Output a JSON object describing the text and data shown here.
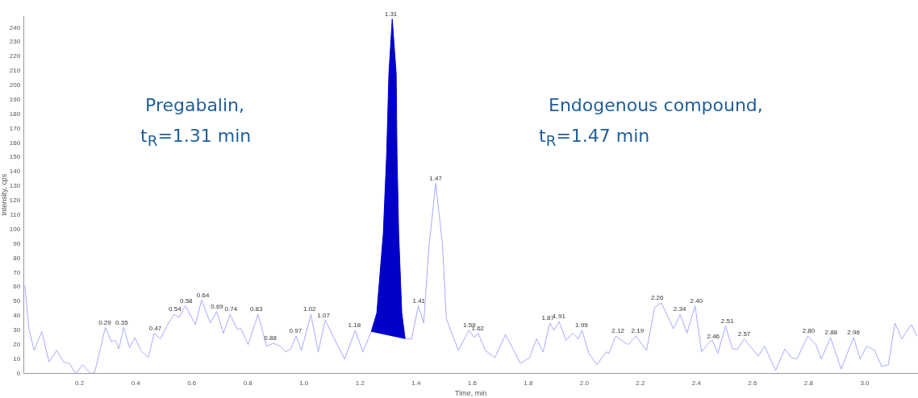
{
  "chart_data": {
    "type": "line",
    "xlabel": "Time, min",
    "ylabel": "Intensity, cps",
    "xlim": [
      0,
      3.19
    ],
    "xticks": [
      0.2,
      0.4,
      0.6,
      0.8,
      {
        "value": 1.0,
        "label": "1.0"
      },
      1.2,
      1.4,
      1.6,
      1.8,
      {
        "value": 2.0,
        "label": "2.0"
      },
      2.2,
      2.4,
      2.6,
      2.8,
      {
        "value": 3.0,
        "label": "3.0"
      }
    ],
    "ylim": [
      0,
      248
    ],
    "yticks": [
      0,
      10,
      20,
      30,
      40,
      50,
      60,
      70,
      80,
      90,
      100,
      110,
      120,
      130,
      140,
      150,
      160,
      170,
      180,
      190,
      200,
      210,
      220,
      230,
      240
    ],
    "grid": false,
    "legend": false,
    "marker": "none",
    "series": [
      {
        "type": "line",
        "color": "#a8aaff",
        "x": [
          0.005,
          0.019,
          0.038,
          0.065,
          0.091,
          0.118,
          0.143,
          0.163,
          0.187,
          0.211,
          0.239,
          0.254,
          0.292,
          0.313,
          0.328,
          0.34,
          0.357,
          0.378,
          0.397,
          0.418,
          0.445,
          0.466,
          0.488,
          0.512,
          0.536,
          0.555,
          0.577,
          0.613,
          0.635,
          0.666,
          0.689,
          0.713,
          0.737,
          0.761,
          0.776,
          0.801,
          0.836,
          0.867,
          0.891,
          0.915,
          0.934,
          0.953,
          0.972,
          0.991,
          1.025,
          1.051,
          1.076,
          1.106,
          1.145,
          1.183,
          1.21,
          1.24,
          1.3,
          1.361,
          1.384,
          1.408,
          1.427,
          1.446,
          1.47,
          1.494,
          1.508,
          1.551,
          1.588,
          1.608,
          1.621,
          1.647,
          1.681,
          1.719,
          1.772,
          1.805,
          1.829,
          1.853,
          1.877,
          1.892,
          1.91,
          1.935,
          1.959,
          1.978,
          1.992,
          2.016,
          2.045,
          2.078,
          2.088,
          2.112,
          2.155,
          2.184,
          2.222,
          2.251,
          2.275,
          2.318,
          2.342,
          2.366,
          2.395,
          2.418,
          2.447,
          2.457,
          2.476,
          2.504,
          2.528,
          2.547,
          2.57,
          2.62,
          2.643,
          2.682,
          2.715,
          2.739,
          2.758,
          2.797,
          2.826,
          2.845,
          2.878,
          2.916,
          2.96,
          2.984,
          3.007,
          3.036,
          3.06,
          3.084,
          3.108,
          3.132,
          3.166,
          3.186
        ],
        "values": [
          61,
          31,
          16,
          29,
          8,
          16,
          8,
          7,
          0,
          6,
          0,
          1,
          32,
          22,
          23,
          17,
          32,
          18,
          25,
          16,
          11,
          28,
          24,
          33,
          41,
          39,
          47,
          34,
          51,
          35,
          43,
          28,
          41,
          31,
          31,
          20,
          41,
          19,
          21,
          19,
          15,
          17,
          26,
          16,
          41,
          15,
          37,
          25,
          10,
          30,
          15,
          29,
          null,
          24,
          24,
          47,
          35,
          88,
          132,
          90,
          38,
          16,
          30,
          25,
          28,
          16,
          11,
          27,
          7,
          11,
          24,
          15,
          35,
          30,
          36,
          23,
          28,
          24,
          30,
          14,
          6,
          15,
          14,
          26,
          20,
          26,
          16,
          46,
          49,
          31,
          41,
          28,
          47,
          15,
          22,
          23,
          14,
          33,
          17,
          17,
          24,
          12,
          19,
          2,
          17,
          11,
          10,
          26,
          20,
          10,
          25,
          3,
          25,
          10,
          19,
          16,
          5,
          6,
          35,
          24,
          34,
          26
        ]
      },
      {
        "type": "area",
        "color": "#0000c8",
        "x": [
          1.24,
          1.26,
          1.283,
          1.295,
          1.303,
          1.315,
          1.329,
          1.332,
          1.338,
          1.349,
          1.361
        ],
        "values": [
          29,
          42,
          97,
          152,
          208,
          246,
          208,
          152,
          97,
          42,
          24
        ]
      }
    ],
    "annotations": [
      "Pregabalin,",
      "t$_{R}$=1.31 min",
      "Endogenous compound,",
      "t$_{R}$=1.47 min",
      {
        "text": "0.29",
        "x": 0.29,
        "y": 32
      },
      {
        "text": "0.35",
        "x": 0.35,
        "y": 32
      },
      {
        "text": "0.47",
        "x": 0.47,
        "y": 28
      },
      {
        "text": "0.54",
        "x": 0.54,
        "y": 41
      },
      {
        "text": "0.58",
        "x": 0.58,
        "y": 47
      },
      {
        "text": "0.64",
        "x": 0.64,
        "y": 51
      },
      {
        "text": "0.69",
        "x": 0.69,
        "y": 43
      },
      {
        "text": "0.74",
        "x": 0.74,
        "y": 41
      },
      {
        "text": "0.83",
        "x": 0.83,
        "y": 41
      },
      {
        "text": "0.88",
        "x": 0.88,
        "y": 21
      },
      {
        "text": "0.97",
        "x": 0.97,
        "y": 26
      },
      {
        "text": "1.02",
        "x": 1.02,
        "y": 41
      },
      {
        "text": "1.07",
        "x": 1.07,
        "y": 37
      },
      {
        "text": "1.18",
        "x": 1.18,
        "y": 30
      },
      {
        "text": "1.31",
        "x": 1.31,
        "y": 246
      },
      {
        "text": "1.41",
        "x": 1.41,
        "y": 47
      },
      {
        "text": "1.47",
        "x": 1.47,
        "y": 132
      },
      {
        "text": "1.59",
        "x": 1.59,
        "y": 30
      },
      {
        "text": "1.62",
        "x": 1.62,
        "y": 28
      },
      {
        "text": "1.87",
        "x": 1.87,
        "y": 35
      },
      {
        "text": "1.91",
        "x": 1.91,
        "y": 36
      },
      {
        "text": "1.99",
        "x": 1.99,
        "y": 30
      },
      {
        "text": "2.12",
        "x": 2.12,
        "y": 26
      },
      {
        "text": "2.19",
        "x": 2.19,
        "y": 26
      },
      {
        "text": "2.26",
        "x": 2.26,
        "y": 49
      },
      {
        "text": "2.34",
        "x": 2.34,
        "y": 41
      },
      {
        "text": "2.40",
        "x": 2.4,
        "y": 47
      },
      {
        "text": "2.46",
        "x": 2.46,
        "y": 22
      },
      {
        "text": "2.51",
        "x": 2.51,
        "y": 33
      },
      {
        "text": "2.57",
        "x": 2.57,
        "y": 24
      },
      {
        "text": "2.80",
        "x": 2.8,
        "y": 26
      },
      {
        "text": "2.88",
        "x": 2.88,
        "y": 25
      },
      {
        "text": "2.96",
        "x": 2.96,
        "y": 25
      }
    ]
  }
}
